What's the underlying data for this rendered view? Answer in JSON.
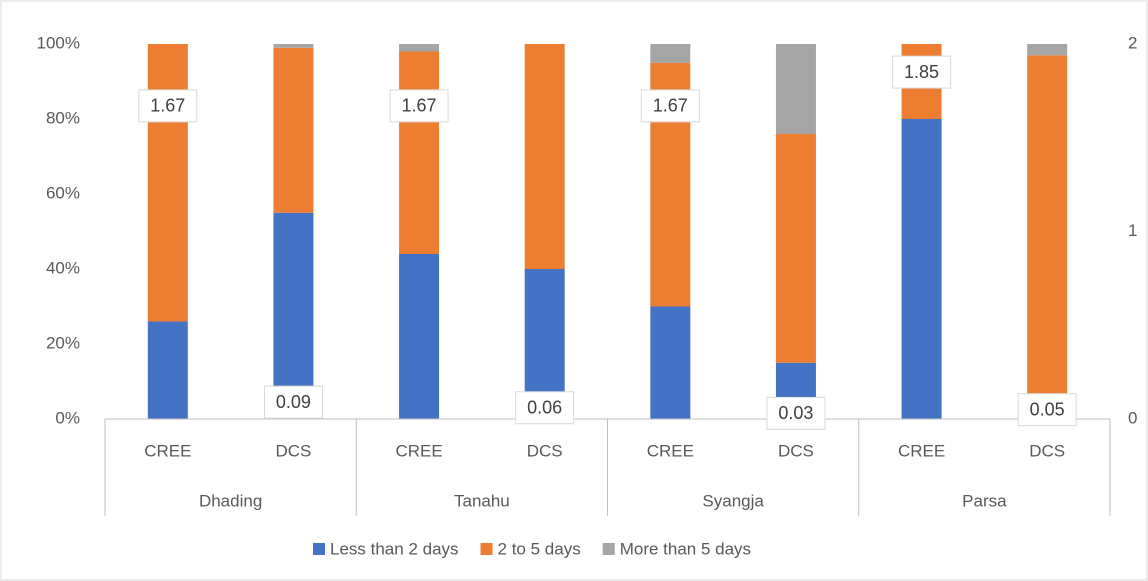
{
  "chart_data": {
    "type": "bar",
    "stacked": true,
    "categories": [
      "CREE",
      "DCS",
      "CREE",
      "DCS",
      "CREE",
      "DCS",
      "CREE",
      "DCS"
    ],
    "groups": [
      "Dhading",
      "Tanahu",
      "Syangja",
      "Parsa"
    ],
    "series": [
      {
        "name": "Less than 2 days",
        "color": "#4472c4",
        "values": [
          26,
          55,
          44,
          40,
          30,
          15,
          80,
          0
        ]
      },
      {
        "name": "2 to 5 days",
        "color": "#ed7d31",
        "values": [
          74,
          44,
          54,
          60,
          65,
          61,
          20,
          97
        ]
      },
      {
        "name": "More than 5 days",
        "color": "#a5a5a5",
        "values": [
          0,
          1,
          2,
          0,
          5,
          24,
          0,
          3
        ]
      }
    ],
    "labels": {
      "axis": "y2",
      "values": [
        1.67,
        0.09,
        1.67,
        0.06,
        1.67,
        0.03,
        1.85,
        0.05
      ]
    },
    "ylim": [
      0,
      100
    ],
    "yticks": [
      {
        "value": 0,
        "label": "0%"
      },
      {
        "value": 20,
        "label": "20%"
      },
      {
        "value": 40,
        "label": "40%"
      },
      {
        "value": 60,
        "label": "60%"
      },
      {
        "value": 80,
        "label": "80%"
      },
      {
        "value": 100,
        "label": "100%"
      }
    ],
    "y2lim": [
      0,
      2
    ],
    "y2ticks": [
      0,
      1,
      2
    ],
    "grid": false,
    "legend": "bottom"
  }
}
